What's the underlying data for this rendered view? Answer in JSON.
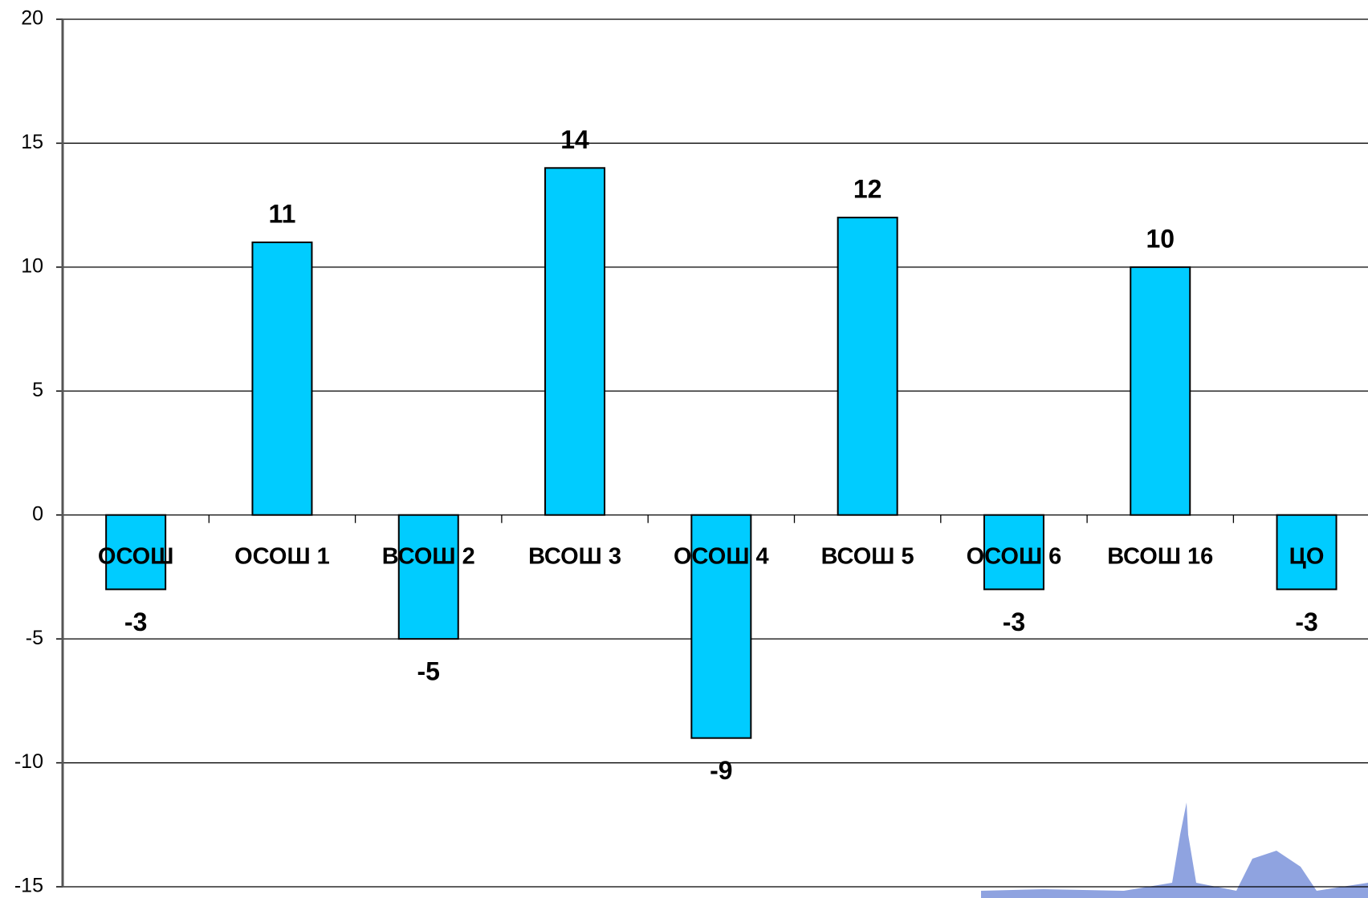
{
  "chart_data": {
    "type": "bar",
    "categories": [
      "ОСОШ",
      "ОСОШ 1",
      "ВСОШ 2",
      "ВСОШ 3",
      "ОСОШ 4",
      "ВСОШ 5",
      "ОСОШ 6",
      "ВСОШ 16",
      "ЦО"
    ],
    "values": [
      -3,
      11,
      -5,
      14,
      -9,
      12,
      -3,
      10,
      -3
    ],
    "color": "#00ccff",
    "ylim": [
      -15,
      20
    ],
    "yticks": [
      -15,
      -10,
      -5,
      0,
      5,
      10,
      15,
      20
    ],
    "grid": true
  }
}
